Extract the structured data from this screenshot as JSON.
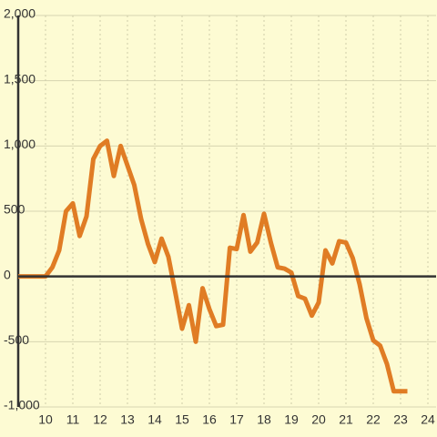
{
  "chart_data": {
    "type": "line",
    "x": [
      9,
      9.25,
      9.5,
      9.75,
      10,
      10.25,
      10.5,
      10.75,
      11,
      11.25,
      11.5,
      11.75,
      12,
      12.25,
      12.5,
      12.75,
      13,
      13.25,
      13.5,
      13.75,
      14,
      14.25,
      14.5,
      14.75,
      15,
      15.25,
      15.5,
      15.75,
      16,
      16.25,
      16.5,
      16.75,
      17,
      17.25,
      17.5,
      17.75,
      18,
      18.25,
      18.5,
      18.75,
      19,
      19.25,
      19.5,
      19.75,
      20,
      20.25,
      20.5,
      20.75,
      21,
      21.25,
      21.5,
      21.75,
      22,
      22.25,
      22.5,
      22.75,
      23,
      23.25
    ],
    "values": [
      0,
      0,
      0,
      0,
      0,
      70,
      200,
      500,
      560,
      310,
      460,
      900,
      1000,
      1040,
      770,
      1000,
      850,
      700,
      440,
      250,
      110,
      290,
      150,
      -120,
      -400,
      -220,
      -500,
      -90,
      -250,
      -380,
      -370,
      220,
      210,
      470,
      190,
      260,
      480,
      260,
      70,
      60,
      30,
      -150,
      -170,
      -300,
      -200,
      200,
      100,
      270,
      260,
      140,
      -60,
      -320,
      -490,
      -530,
      -670,
      -880,
      -880,
      -880
    ],
    "color": "#e07c24",
    "xlim": [
      9,
      24.3
    ],
    "xticks": [
      10,
      11,
      12,
      13,
      14,
      15,
      16,
      17,
      18,
      19,
      20,
      21,
      22,
      23,
      24
    ],
    "ylim": [
      -1000,
      2000
    ],
    "yticks": [
      {
        "value": -1000,
        "label": "-1,000"
      },
      -500,
      0,
      500,
      {
        "value": 1000,
        "label": "1,000"
      },
      {
        "value": 1500,
        "label": "1,500"
      },
      {
        "value": 2000,
        "label": "2,000"
      }
    ],
    "grid": true
  }
}
